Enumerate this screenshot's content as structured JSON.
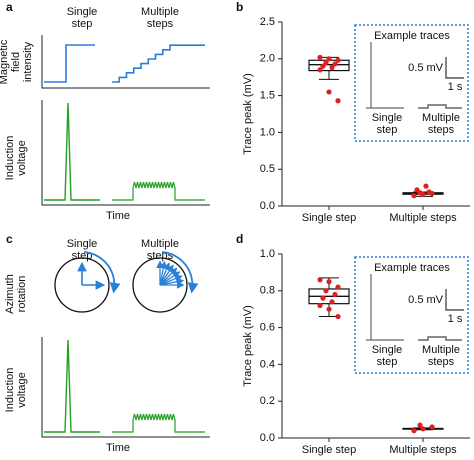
{
  "panels": {
    "a": {
      "label": "a",
      "columns": [
        [
          "Single",
          "step"
        ],
        [
          "Multiple",
          "steps"
        ]
      ],
      "rows": [
        [
          "Magnetic",
          "field",
          "intensity"
        ],
        [
          "Induction",
          "voltage"
        ]
      ],
      "x_label": "Time",
      "field_color": "#2a7fd6",
      "voltage_color": "#22a022"
    },
    "c": {
      "label": "c",
      "columns": [
        [
          "Single",
          "step"
        ],
        [
          "Multiple",
          "steps"
        ]
      ],
      "rows": [
        [
          "Azimuth",
          "rotation"
        ],
        [
          "Induction",
          "voltage"
        ]
      ],
      "x_label": "Time",
      "field_color": "#2a7fd6",
      "voltage_color": "#22a022"
    }
  },
  "chart_data": [
    {
      "type": "box",
      "label": "b",
      "y_label": "Trace peak (mV)",
      "categories": [
        "Single step",
        "Multiple steps"
      ],
      "ylim": [
        0,
        2.5
      ],
      "yticks": [
        {
          "value": 0,
          "label": "0.0"
        },
        0.5,
        {
          "value": 1,
          "label": "1.0"
        },
        1.5,
        {
          "value": 2,
          "label": "2.0"
        },
        2.5
      ],
      "boxes": [
        {
          "min": 1.72,
          "q1": 1.84,
          "median": 1.92,
          "q3": 1.98,
          "max": 2.02
        },
        {
          "min": 0.13,
          "q1": 0.16,
          "median": 0.17,
          "q3": 0.18,
          "max": 0.19
        }
      ],
      "points": [
        [
          2.02,
          2.0,
          1.98,
          1.95,
          1.93,
          1.9,
          1.88,
          1.85,
          1.55,
          1.43
        ],
        [
          0.14,
          0.16,
          0.17,
          0.18,
          0.19,
          0.22,
          0.27
        ]
      ],
      "point_color": "#e02020",
      "inset": {
        "title": "Example traces",
        "scale_y": "0.5 mV",
        "scale_x": "1 s",
        "labels": [
          [
            "Single",
            "step"
          ],
          [
            "Multiple",
            "steps"
          ]
        ],
        "color": "#2a7fd6"
      }
    },
    {
      "type": "box",
      "label": "d",
      "y_label": "Trace peak (mV)",
      "categories": [
        "Single step",
        "Multiple steps"
      ],
      "ylim": [
        0,
        1
      ],
      "yticks": [
        {
          "value": 0,
          "label": "0.0"
        },
        0.2,
        0.4,
        0.6,
        0.8,
        {
          "value": 1,
          "label": "1.0"
        }
      ],
      "boxes": [
        {
          "min": 0.66,
          "q1": 0.73,
          "median": 0.77,
          "q3": 0.81,
          "max": 0.87
        },
        {
          "min": 0.045,
          "q1": 0.048,
          "median": 0.05,
          "q3": 0.052,
          "max": 0.055
        }
      ],
      "points": [
        [
          0.86,
          0.85,
          0.82,
          0.8,
          0.78,
          0.76,
          0.74,
          0.72,
          0.7,
          0.66
        ],
        [
          0.04,
          0.05,
          0.06,
          0.07
        ]
      ],
      "point_color": "#e02020",
      "inset": {
        "title": "Example traces",
        "scale_y": "0.5 mV",
        "scale_x": "1 s",
        "labels": [
          [
            "Single",
            "step"
          ],
          [
            "Multiple",
            "steps"
          ]
        ],
        "color": "#2a7fd6"
      }
    }
  ]
}
